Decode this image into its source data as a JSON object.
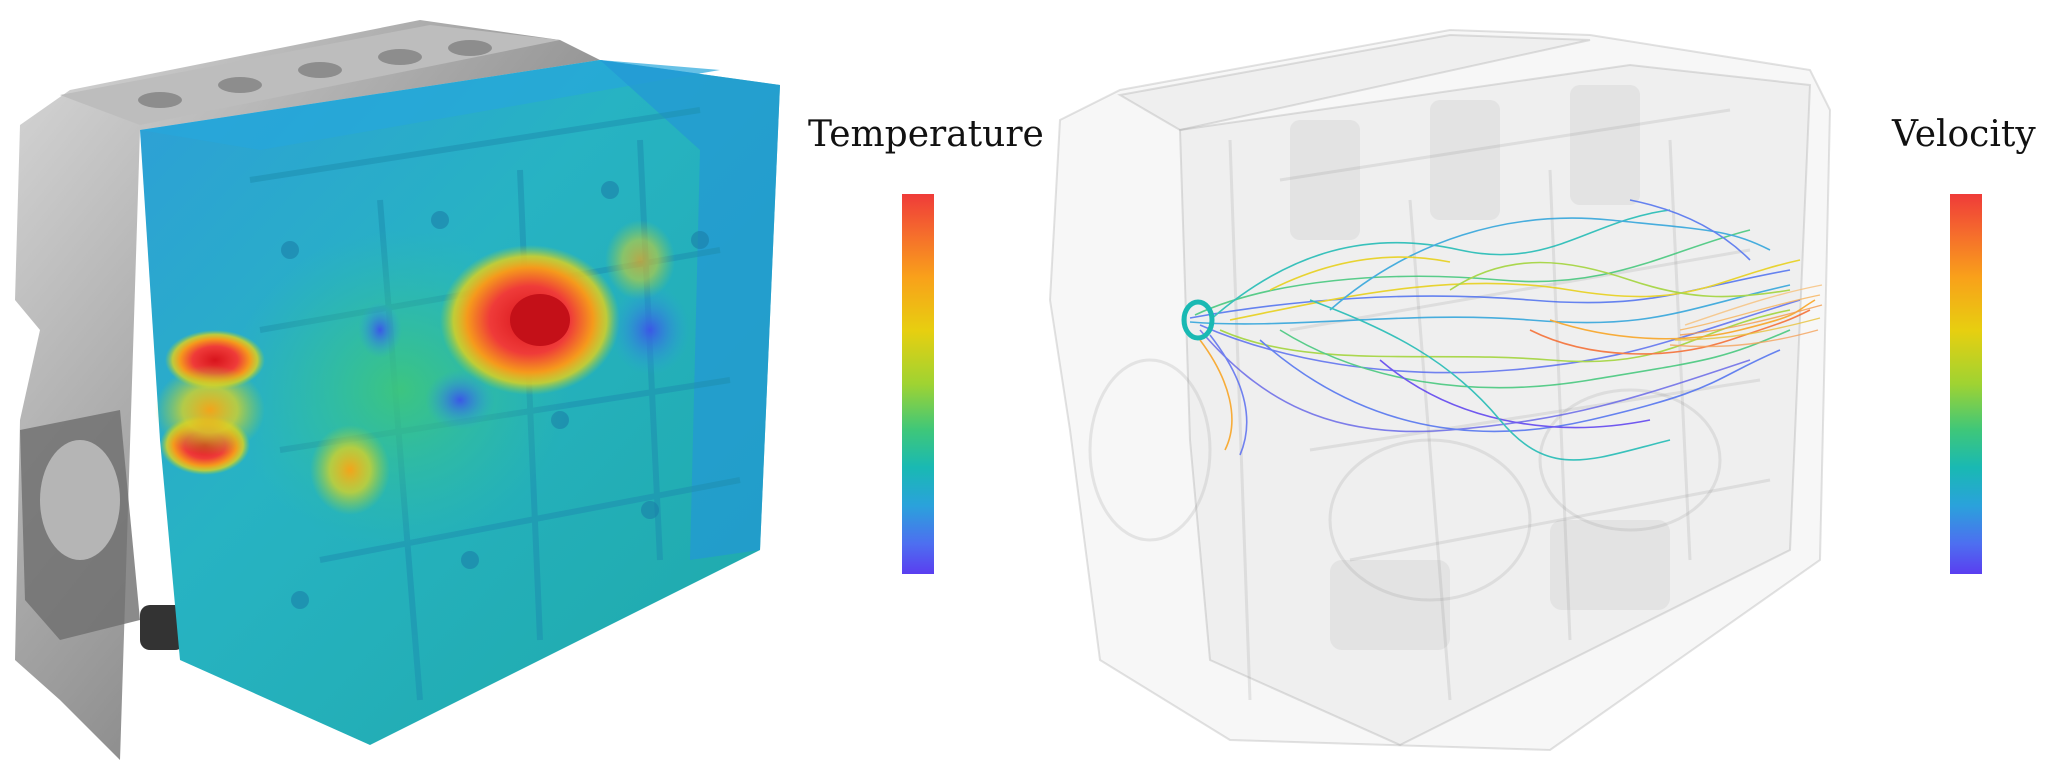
{
  "left": {
    "legend_title": "Temperature",
    "colormap": [
      "#ef3b39",
      "#f56a2d",
      "#f9a11a",
      "#e7cf10",
      "#9fd332",
      "#3fc779",
      "#19b9b3",
      "#2aa2db",
      "#4d6ff0",
      "#5a3ef0"
    ],
    "subject": "engine-block-temperature-field"
  },
  "right": {
    "legend_title": "Velocity",
    "colormap": [
      "#ef3b39",
      "#f56a2d",
      "#f9a11a",
      "#e7cf10",
      "#9fd332",
      "#3fc779",
      "#19b9b3",
      "#2aa2db",
      "#4d6ff0",
      "#5a3ef0"
    ],
    "subject": "coolant-flow-streamlines"
  }
}
